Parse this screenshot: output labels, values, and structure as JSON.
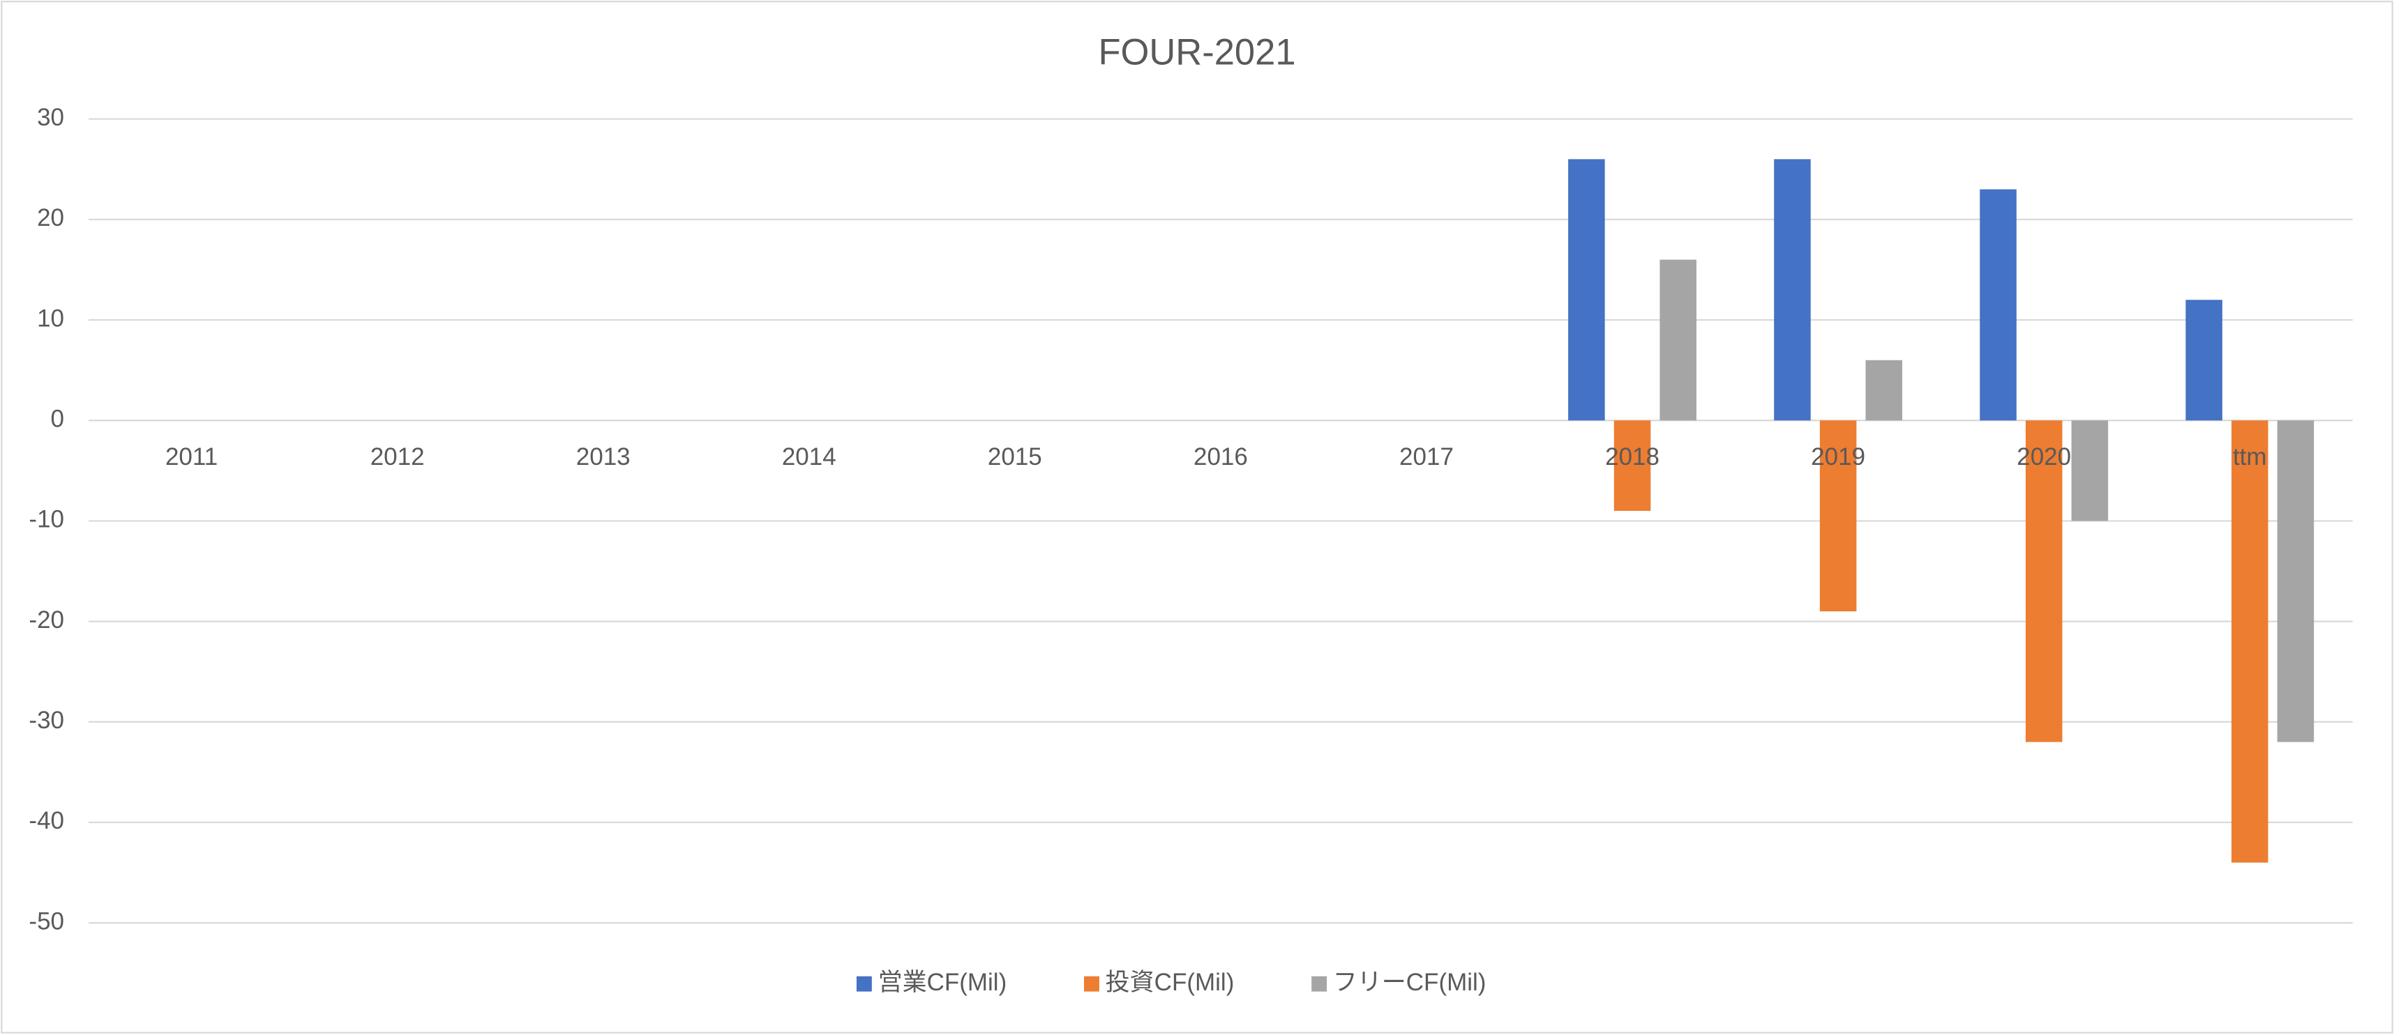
{
  "chart_data": {
    "type": "bar",
    "title": "FOUR-2021",
    "categories": [
      "2011",
      "2012",
      "2013",
      "2014",
      "2015",
      "2016",
      "2017",
      "2018",
      "2019",
      "2020",
      "ttm"
    ],
    "series": [
      {
        "name": "営業CF(Mil)",
        "color": "#4472c4",
        "values": [
          null,
          null,
          null,
          null,
          null,
          null,
          null,
          26,
          26,
          23,
          12
        ]
      },
      {
        "name": "投資CF(Mil)",
        "color": "#ed7d31",
        "values": [
          null,
          null,
          null,
          null,
          null,
          null,
          null,
          -9,
          -19,
          -32,
          -44
        ]
      },
      {
        "name": "フリーCF(Mil)",
        "color": "#a5a5a5",
        "values": [
          null,
          null,
          null,
          null,
          null,
          null,
          null,
          16,
          6,
          -10,
          -32
        ]
      }
    ],
    "ylim": [
      -50,
      30
    ],
    "yticks": [
      -50,
      -40,
      -30,
      -20,
      -10,
      0,
      10,
      20,
      30
    ],
    "grid": true,
    "legend": "bottom"
  }
}
